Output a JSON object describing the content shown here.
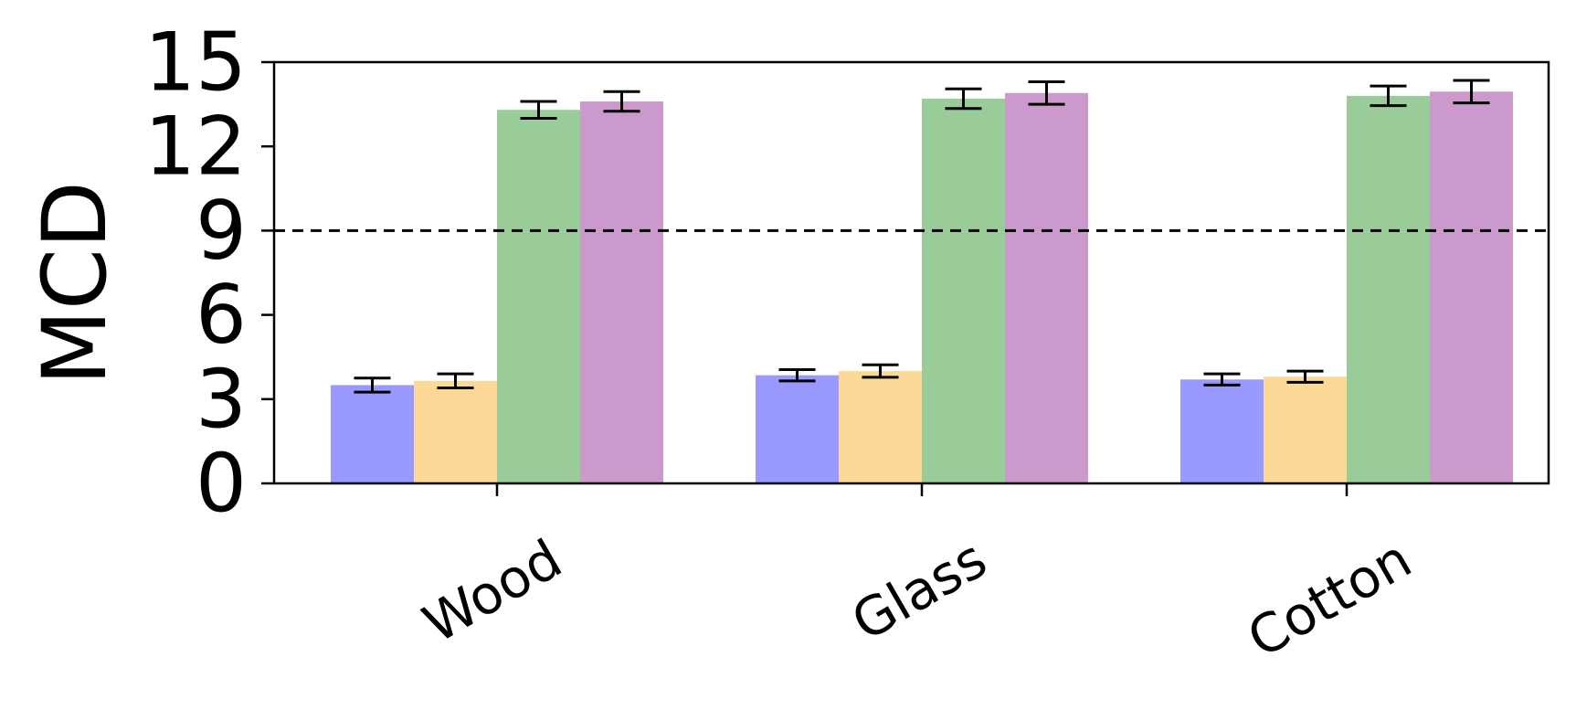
{
  "chart_data": {
    "type": "bar",
    "title": "",
    "xlabel": "",
    "ylabel": "MCD",
    "ylim": [
      0,
      15
    ],
    "yticks": [
      "0",
      "3",
      "6",
      "9",
      "12",
      "15"
    ],
    "categories": [
      "Wood",
      "Glass",
      "Cotton"
    ],
    "series": [
      {
        "color": "#9999ff",
        "values": [
          3.5,
          3.85,
          3.7
        ],
        "errors": [
          0.25,
          0.2,
          0.2
        ]
      },
      {
        "color": "#fdd998",
        "values": [
          3.65,
          4.0,
          3.8
        ],
        "errors": [
          0.25,
          0.22,
          0.2
        ]
      },
      {
        "color": "#99cc99",
        "values": [
          13.3,
          13.7,
          13.8
        ],
        "errors": [
          0.3,
          0.35,
          0.35
        ]
      },
      {
        "color": "#cc99cc",
        "values": [
          13.6,
          13.9,
          13.95
        ],
        "errors": [
          0.35,
          0.4,
          0.4
        ]
      }
    ],
    "reference_line": {
      "value": 9,
      "style": "dashed"
    },
    "grid": false,
    "legend": "none"
  }
}
